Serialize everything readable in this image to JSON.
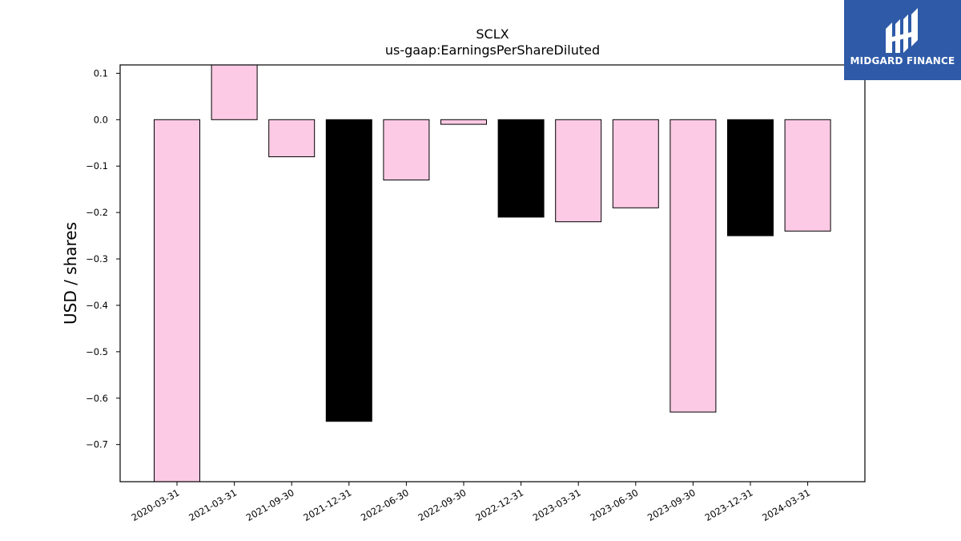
{
  "brand": {
    "name": "MIDGARD FINANCE",
    "bg_color": "#2e5aa8"
  },
  "chart_data": {
    "type": "bar",
    "title": "SCLX",
    "subtitle": "us-gaap:EarningsPerShareDiluted",
    "xlabel": "",
    "ylabel": "USD / shares",
    "ylim": [
      -0.78,
      0.118
    ],
    "yticks": [
      0.1,
      0.0,
      -0.1,
      -0.2,
      -0.3,
      -0.4,
      -0.5,
      -0.6,
      -0.7
    ],
    "ytick_labels": [
      "0.1",
      "0.0",
      "−0.1",
      "−0.2",
      "−0.3",
      "−0.4",
      "−0.5",
      "−0.6",
      "−0.7"
    ],
    "grid": false,
    "categories": [
      "2020-03-31",
      "2021-03-31",
      "2021-09-30",
      "2021-12-31",
      "2022-06-30",
      "2022-09-30",
      "2022-12-31",
      "2023-03-31",
      "2023-06-30",
      "2023-09-30",
      "2023-12-31",
      "2024-03-31"
    ],
    "values": [
      -0.78,
      0.12,
      -0.08,
      -0.65,
      -0.13,
      -0.01,
      -0.21,
      -0.22,
      -0.19,
      -0.63,
      -0.25,
      -0.24
    ],
    "bar_colors": [
      "#fccae4",
      "#fccae4",
      "#fccae4",
      "#000000",
      "#fccae4",
      "#fccae4",
      "#000000",
      "#fccae4",
      "#fccae4",
      "#fccae4",
      "#000000",
      "#fccae4"
    ]
  }
}
